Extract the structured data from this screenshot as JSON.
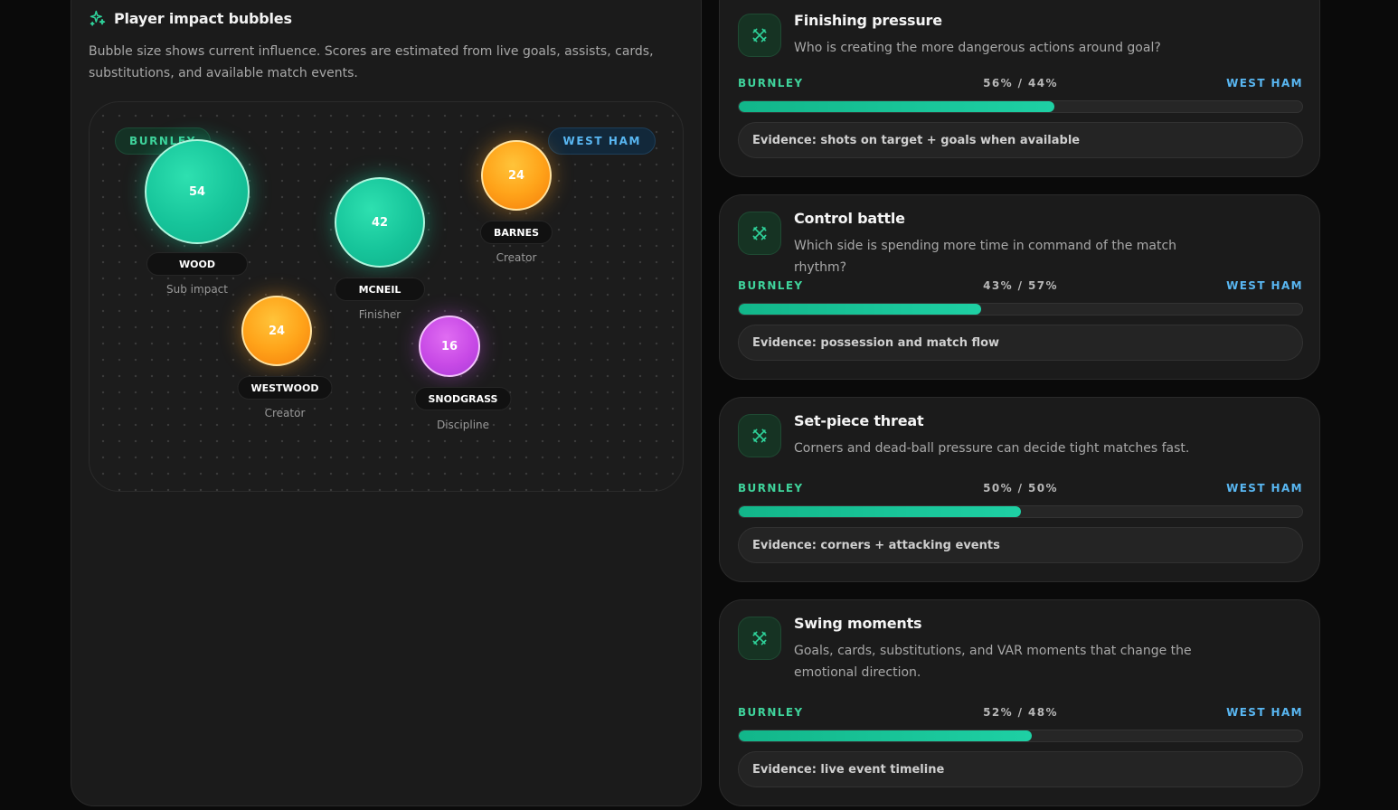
{
  "impact": {
    "title": "Player impact bubbles",
    "description": "Bubble size shows current influence. Scores are estimated from live goals, assists, cards, substitutions, and available match events.",
    "home_team": "BURNLEY",
    "away_team": "WEST HAM",
    "players": [
      {
        "name": "WOOD",
        "score": "54",
        "role": "Sub impact",
        "color": "teal"
      },
      {
        "name": "MCNEIL",
        "score": "42",
        "role": "Finisher",
        "color": "teal"
      },
      {
        "name": "BARNES",
        "score": "24",
        "role": "Creator",
        "color": "orange"
      },
      {
        "name": "WESTWOOD",
        "score": "24",
        "role": "Creator",
        "color": "orange"
      },
      {
        "name": "SNODGRASS",
        "score": "16",
        "role": "Discipline",
        "color": "purple"
      }
    ]
  },
  "metrics": [
    {
      "title": "Finishing pressure",
      "description": "Who is creating the more dangerous actions around goal?",
      "home": "BURNLEY",
      "away": "WEST HAM",
      "split": "56% / 44%",
      "home_pct": 56,
      "evidence": "Evidence: shots on target + goals when available",
      "icon": "swords-icon"
    },
    {
      "title": "Control battle",
      "description": "Which side is spending more time in command of the match rhythm?",
      "home": "BURNLEY",
      "away": "WEST HAM",
      "split": "43% / 57%",
      "home_pct": 43,
      "evidence": "Evidence: possession and match flow",
      "icon": "swords-icon"
    },
    {
      "title": "Set-piece threat",
      "description": "Corners and dead-ball pressure can decide tight matches fast.",
      "home": "BURNLEY",
      "away": "WEST HAM",
      "split": "50% / 50%",
      "home_pct": 50,
      "evidence": "Evidence: corners + attacking events",
      "icon": "swords-icon"
    },
    {
      "title": "Swing moments",
      "description": "Goals, cards, substitutions, and VAR moments that change the emotional direction.",
      "home": "BURNLEY",
      "away": "WEST HAM",
      "split": "52% / 48%",
      "home_pct": 52,
      "evidence": "Evidence: live event timeline",
      "icon": "swords-icon"
    }
  ]
}
